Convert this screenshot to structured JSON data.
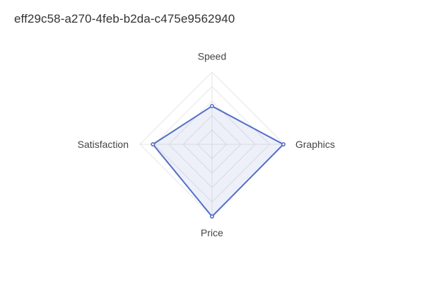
{
  "title": "eff29c58-a270-4feb-b2da-c475e9562940",
  "chart_data": {
    "type": "radar",
    "title": "eff29c58-a270-4feb-b2da-c475e9562940",
    "indicators": [
      "Speed",
      "Graphics",
      "Price",
      "Satisfaction"
    ],
    "max": 100,
    "grid_levels": 5,
    "series": [
      {
        "values": [
          53,
          99,
          100,
          82
        ],
        "color": "#5470c6"
      }
    ]
  }
}
